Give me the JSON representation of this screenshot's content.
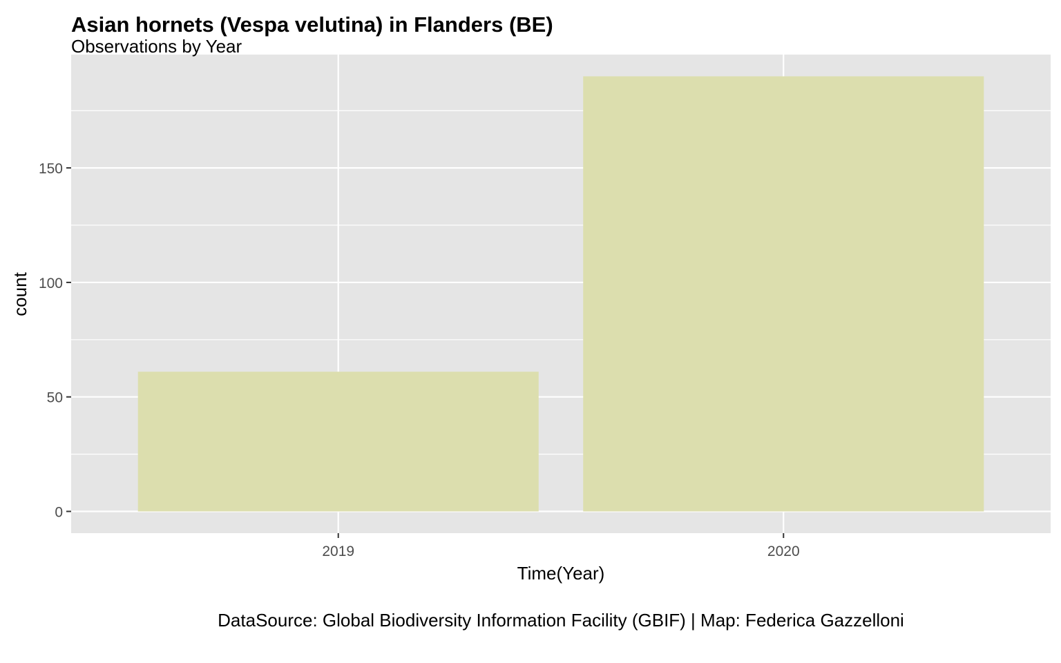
{
  "chart_data": {
    "type": "bar",
    "title": "Asian hornets (Vespa velutina) in Flanders (BE)",
    "subtitle": "Observations by Year",
    "xlabel": "Time(Year)",
    "ylabel": "count",
    "caption": "DataSource: Global Biodiversity Information Facility (GBIF) | Map: Federica Gazzelloni",
    "categories": [
      "2019",
      "2020"
    ],
    "values": [
      61,
      190
    ],
    "ylim": [
      -9.5,
      199.5
    ],
    "yticks": [
      0,
      50,
      100,
      150
    ],
    "yticks_minor": [
      25,
      75,
      125,
      175
    ],
    "grid": true,
    "legend": "none",
    "colors": {
      "bar": "#dcdeae",
      "panel": "#e5e5e5",
      "grid": "#ffffff",
      "tick": "#333333",
      "tick_label": "#4d4d4d"
    }
  }
}
